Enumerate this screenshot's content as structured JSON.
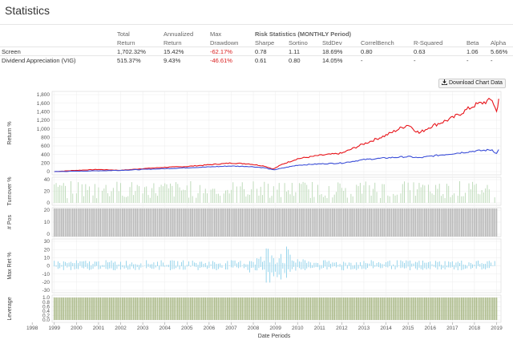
{
  "page": {
    "title": "Statistics"
  },
  "table": {
    "risk_header": "Risk Statistics (MONTHLY Period)",
    "headers": [
      [
        "",
        "Total",
        "Annualized",
        "Max",
        "",
        "",
        "",
        "",
        "",
        "",
        ""
      ],
      [
        "",
        "Return",
        "Return",
        "Drawdown",
        "Sharpe",
        "Sortino",
        "StdDev",
        "CorrelBench",
        "R-Squared",
        "Beta",
        "Alpha"
      ]
    ],
    "rows": [
      [
        "Screen",
        "1,702.32%",
        "15.42%",
        "-62.17%",
        "0.78",
        "1.11",
        "18.69%",
        "0.80",
        "0.63",
        "1.06",
        "5.66%"
      ],
      [
        "Dividend Appreciation (VIG)",
        "515.37%",
        "9.43%",
        "-46.61%",
        "0.61",
        "0.80",
        "14.05%",
        "-",
        "-",
        "-",
        "-"
      ]
    ]
  },
  "download_button": {
    "label": "Download Chart Data",
    "icon": "download-icon"
  },
  "chart": {
    "xlabel": "Date Periods",
    "x_ticks": [
      "1998",
      "1999",
      "2000",
      "2001",
      "2002",
      "2003",
      "2004",
      "2005",
      "2006",
      "2007",
      "2008",
      "2009",
      "2010",
      "2011",
      "2012",
      "2013",
      "2014",
      "2015",
      "2016",
      "2017",
      "2018",
      "2019"
    ],
    "panels": [
      {
        "ylabel": "Return %",
        "ticks": [
          "1,800",
          "1,600",
          "1,400",
          "1,200",
          "1,000",
          "800",
          "600",
          "400",
          "200",
          "0"
        ]
      },
      {
        "ylabel": "Turnover %",
        "ticks": [
          "40",
          "20",
          "0"
        ]
      },
      {
        "ylabel": "# Pos",
        "ticks": [
          "20",
          "10",
          "0"
        ]
      },
      {
        "ylabel": "Max Ret %",
        "ticks": [
          "30",
          "20",
          "10",
          "0",
          "-10",
          "-20",
          "-30"
        ]
      },
      {
        "ylabel": "Leverage",
        "ticks": [
          "1.0",
          "0.8",
          "0.6",
          "0.4",
          "0.2",
          "0.0"
        ]
      }
    ],
    "colors": {
      "screen": "#e8141a",
      "benchmark": "#3c4fd8",
      "turnover": "#b9d8b4",
      "positions": "#b5b5b5",
      "maxret": "#7fcbe8",
      "leverage": "#aab988",
      "grid": "#ececec"
    }
  },
  "chart_data": {
    "type": "line",
    "x": [
      1999,
      2000,
      2001,
      2002,
      2003,
      2004,
      2005,
      2006,
      2007,
      2007.8,
      2008.5,
      2008.9,
      2009.3,
      2010,
      2011,
      2012,
      2013,
      2014,
      2015,
      2015.5,
      2016,
      2017,
      2018,
      2018.8,
      2019,
      2019.1
    ],
    "series": [
      {
        "name": "Screen",
        "values": [
          0,
          30,
          50,
          30,
          70,
          100,
          120,
          160,
          200,
          180,
          130,
          60,
          170,
          300,
          380,
          430,
          650,
          850,
          1100,
          900,
          1050,
          1250,
          1550,
          1680,
          1400,
          1702
        ]
      },
      {
        "name": "Dividend Appreciation (VIG)",
        "values": [
          0,
          10,
          20,
          30,
          50,
          70,
          90,
          110,
          130,
          120,
          90,
          40,
          80,
          150,
          180,
          200,
          280,
          320,
          350,
          320,
          360,
          420,
          480,
          510,
          420,
          515
        ]
      }
    ],
    "ylabel": "Return %",
    "xlabel": "Date Periods",
    "ylim": [
      0,
      1800
    ]
  }
}
